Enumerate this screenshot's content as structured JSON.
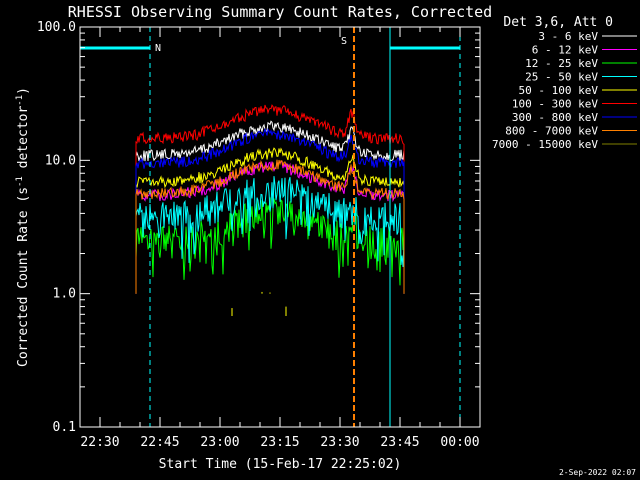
{
  "chart_data": {
    "type": "line",
    "title": "RHESSI Observing Summary Count Rates, Corrected",
    "xlabel": "Start Time (15-Feb-17 22:25:02)",
    "ylabel_prefix": "Corrected Count Rate (s",
    "ylabel_sup1": "-1",
    "ylabel_mid": " detector",
    "ylabel_sup2": "-1",
    "ylabel_suffix": ")",
    "y_scale": "log",
    "ylim": [
      0.1,
      100.0
    ],
    "y_ticks": [
      "0.1",
      "1.0",
      "10.0",
      "100.0"
    ],
    "x_tick_labels": [
      "22:30",
      "22:45",
      "23:00",
      "23:15",
      "23:30",
      "23:45",
      "00:00"
    ],
    "x_tick_minutes": [
      5,
      20,
      35,
      50,
      65,
      80,
      95
    ],
    "xlim_minutes": [
      0,
      100
    ],
    "legend_header": "Det 3,6, Att 0",
    "legend_position": "right",
    "series": [
      {
        "name": "3 - 6 keV",
        "color": "#ffffff",
        "base": 12.0
      },
      {
        "name": "6 - 12 keV",
        "color": "#ff00ff",
        "base": 6.0
      },
      {
        "name": "12 - 25 keV",
        "color": "#00ff00",
        "base": 3.2
      },
      {
        "name": "25 - 50 keV",
        "color": "#00ffff",
        "base": 4.8
      },
      {
        "name": "50 - 100 keV",
        "color": "#ffff00",
        "base": 7.5
      },
      {
        "name": "100 - 300 keV",
        "color": "#ff0000",
        "base": 16.0
      },
      {
        "name": "300 - 800 keV",
        "color": "#0000ff",
        "base": 10.5
      },
      {
        "name": "800 - 7000 keV",
        "color": "#ff8000",
        "base": 6.2
      },
      {
        "name": "7000 - 15000 keV",
        "color": "#808000",
        "base": 0.75
      }
    ],
    "data_window_minutes": [
      14,
      81
    ],
    "night_periods_minutes": [
      [
        0,
        17.5
      ],
      [
        77.5,
        95
      ]
    ],
    "night_marker": "N",
    "saa_marker": "S",
    "saa_minutes": 68.5,
    "attenuator_color": "#ff8000",
    "night_color": "#00ffff"
  },
  "footer_date": "2-Sep-2022 02:07"
}
